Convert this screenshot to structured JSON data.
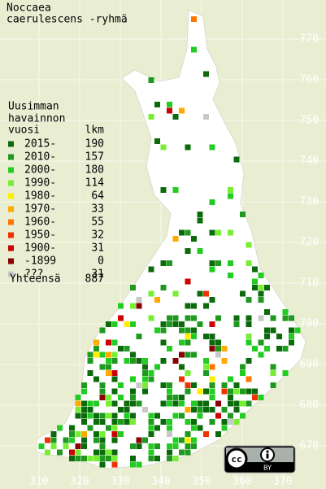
{
  "title": [
    "Noccaea",
    "caerulescens -ryhmä"
  ],
  "legend": {
    "header": [
      "Uusimman",
      "havainnon",
      "vuosi"
    ],
    "count_header": "lkm",
    "items": [
      {
        "label": "2015-",
        "count": 190,
        "color": "#0b6b0b"
      },
      {
        "label": "2010-",
        "count": 157,
        "color": "#1f9a1f"
      },
      {
        "label": "2000-",
        "count": 180,
        "color": "#22cc22"
      },
      {
        "label": "1990-",
        "count": 114,
        "color": "#77ee33"
      },
      {
        "label": "1980-",
        "count": 64,
        "color": "#ffee00"
      },
      {
        "label": "1970-",
        "count": 33,
        "color": "#ffaa00"
      },
      {
        "label": "1960-",
        "count": 55,
        "color": "#ff7700"
      },
      {
        "label": "1950-",
        "count": 32,
        "color": "#ee3300"
      },
      {
        "label": "1900-",
        "count": 31,
        "color": "#cc0000"
      },
      {
        "label": "-1899",
        "count": 0,
        "color": "#880000"
      },
      {
        "label": "???",
        "count": 31,
        "color": "#c8c8c8"
      }
    ],
    "total_label": "Yhteensä",
    "total": 887
  },
  "grid": {
    "northing": [
      770,
      760,
      750,
      740,
      730,
      720,
      710,
      700,
      690,
      680,
      670
    ],
    "easting": [
      310,
      320,
      330,
      340,
      350,
      360,
      370
    ]
  },
  "license": {
    "cc": "cc",
    "by": "BY"
  }
}
